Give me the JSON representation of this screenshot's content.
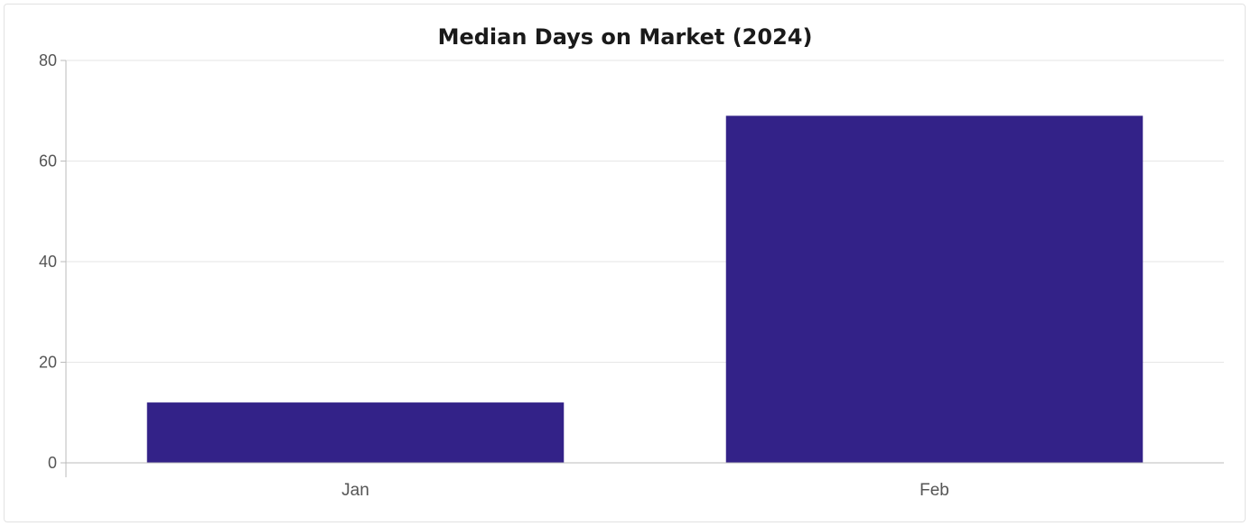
{
  "chart_data": {
    "type": "bar",
    "title": "Median Days on Market (2024)",
    "xlabel": "",
    "ylabel": "",
    "categories": [
      "Jan",
      "Feb"
    ],
    "values": [
      12,
      69
    ],
    "ylim": [
      0,
      80
    ],
    "yticks": [
      0,
      20,
      40,
      60,
      80
    ],
    "grid": true,
    "legend": "none",
    "colors": {
      "bar": "#332288",
      "grid": "#e6e6e6",
      "axis": "#bbbbbb"
    }
  }
}
